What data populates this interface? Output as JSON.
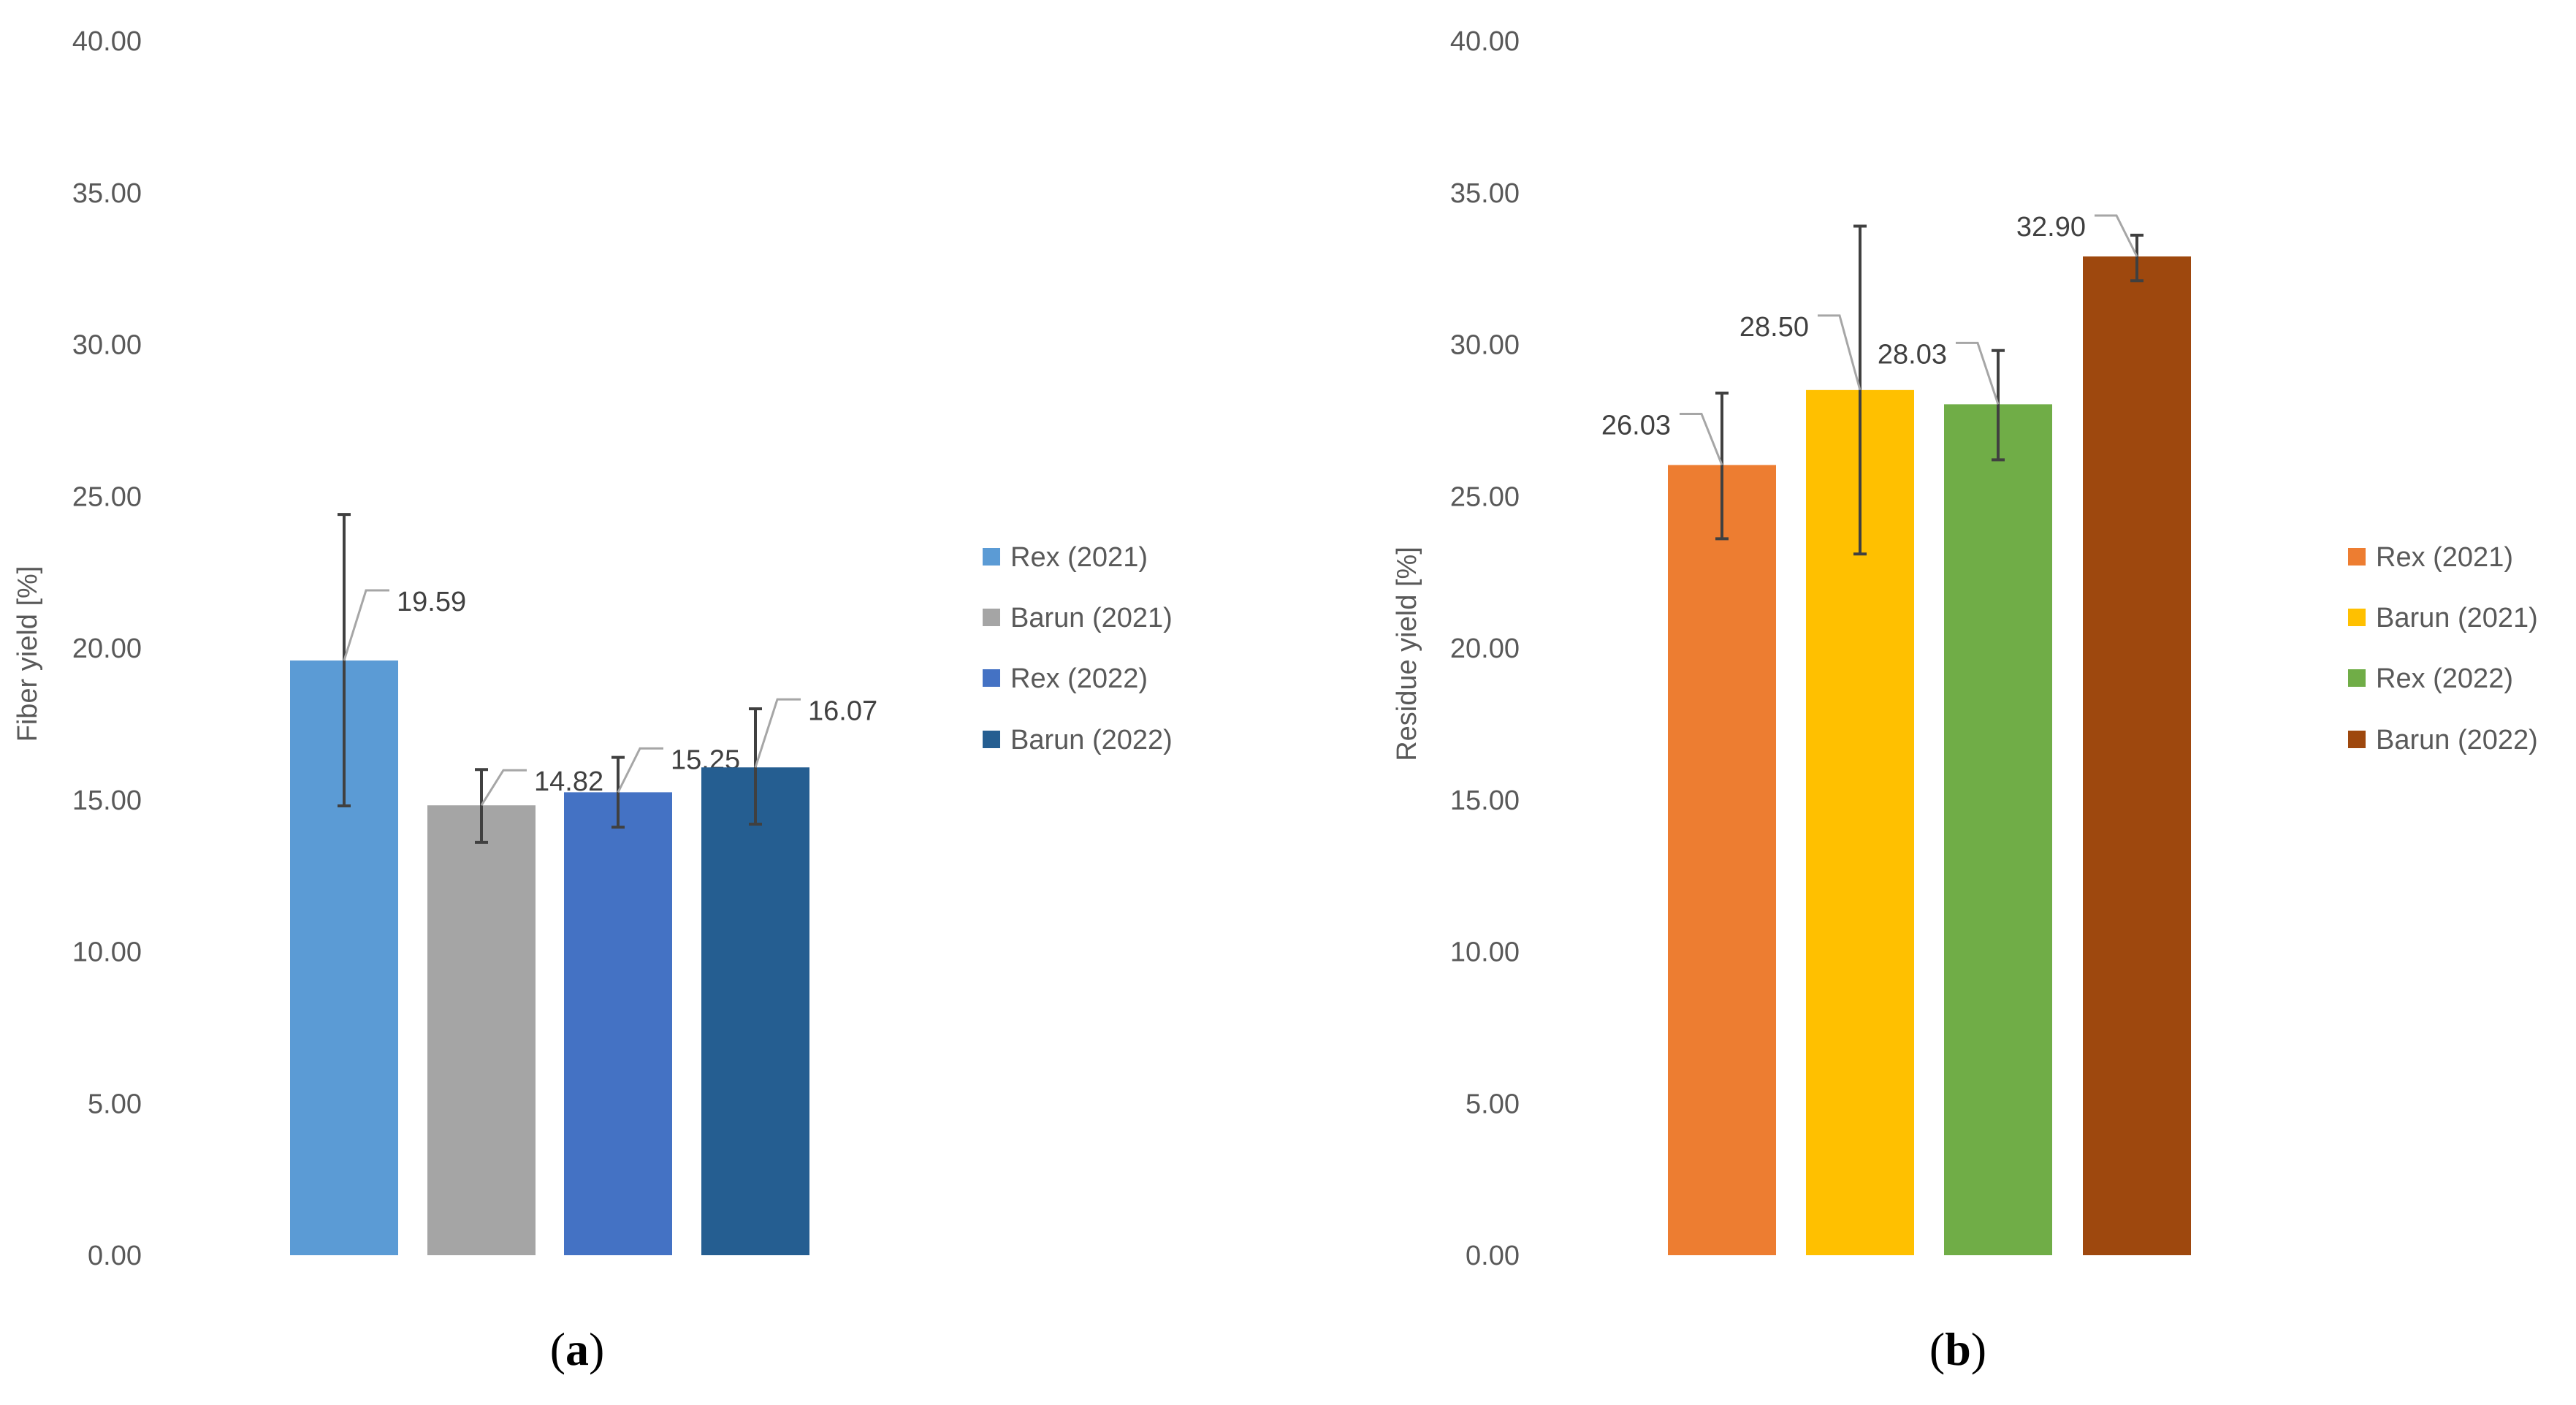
{
  "chart_data": [
    {
      "type": "bar",
      "panel": "a",
      "caption": "(a)",
      "caption_letter": "a",
      "categories": [
        "Rex (2021)",
        "Barun (2021)",
        "Rex (2022)",
        "Barun (2022)"
      ],
      "values": [
        19.59,
        14.82,
        15.25,
        16.07
      ],
      "value_labels": [
        "19.59",
        "14.82",
        "15.25",
        "16.07"
      ],
      "error_low": [
        14.8,
        13.6,
        14.1,
        14.2
      ],
      "error_high": [
        24.4,
        16.0,
        16.4,
        18.0
      ],
      "colors": [
        "#5b9bd5",
        "#a5a5a5",
        "#4472c4",
        "#255e91"
      ],
      "xlabel": "",
      "ylabel": "Fiber yield [%]",
      "ylim": [
        0,
        40
      ],
      "yticks": [
        "0.00",
        "5.00",
        "10.00",
        "15.00",
        "20.00",
        "25.00",
        "30.00",
        "35.00",
        "40.00"
      ],
      "legend": [
        "Rex (2021)",
        "Barun (2021)",
        "Rex (2022)",
        "Barun (2022)"
      ],
      "legend_position": "right",
      "grid": false
    },
    {
      "type": "bar",
      "panel": "b",
      "caption": "(b)",
      "caption_letter": "b",
      "categories": [
        "Rex (2021)",
        "Barun (2021)",
        "Rex (2022)",
        "Barun (2022)"
      ],
      "values": [
        26.03,
        28.5,
        28.03,
        32.9
      ],
      "value_labels": [
        "26.03",
        "28.50",
        "28.03",
        "32.90"
      ],
      "error_low": [
        23.6,
        23.1,
        26.2,
        32.1
      ],
      "error_high": [
        28.4,
        33.9,
        29.8,
        33.6
      ],
      "colors": [
        "#ed7d31",
        "#ffc000",
        "#70ad47",
        "#9e480e"
      ],
      "xlabel": "",
      "ylabel": "Residue yield [%]",
      "ylim": [
        0,
        40
      ],
      "yticks": [
        "0.00",
        "5.00",
        "10.00",
        "15.00",
        "20.00",
        "25.00",
        "30.00",
        "35.00",
        "40.00"
      ],
      "legend": [
        "Rex (2021)",
        "Barun (2021)",
        "Rex (2022)",
        "Barun (2022)"
      ],
      "legend_position": "right",
      "grid": false
    }
  ]
}
